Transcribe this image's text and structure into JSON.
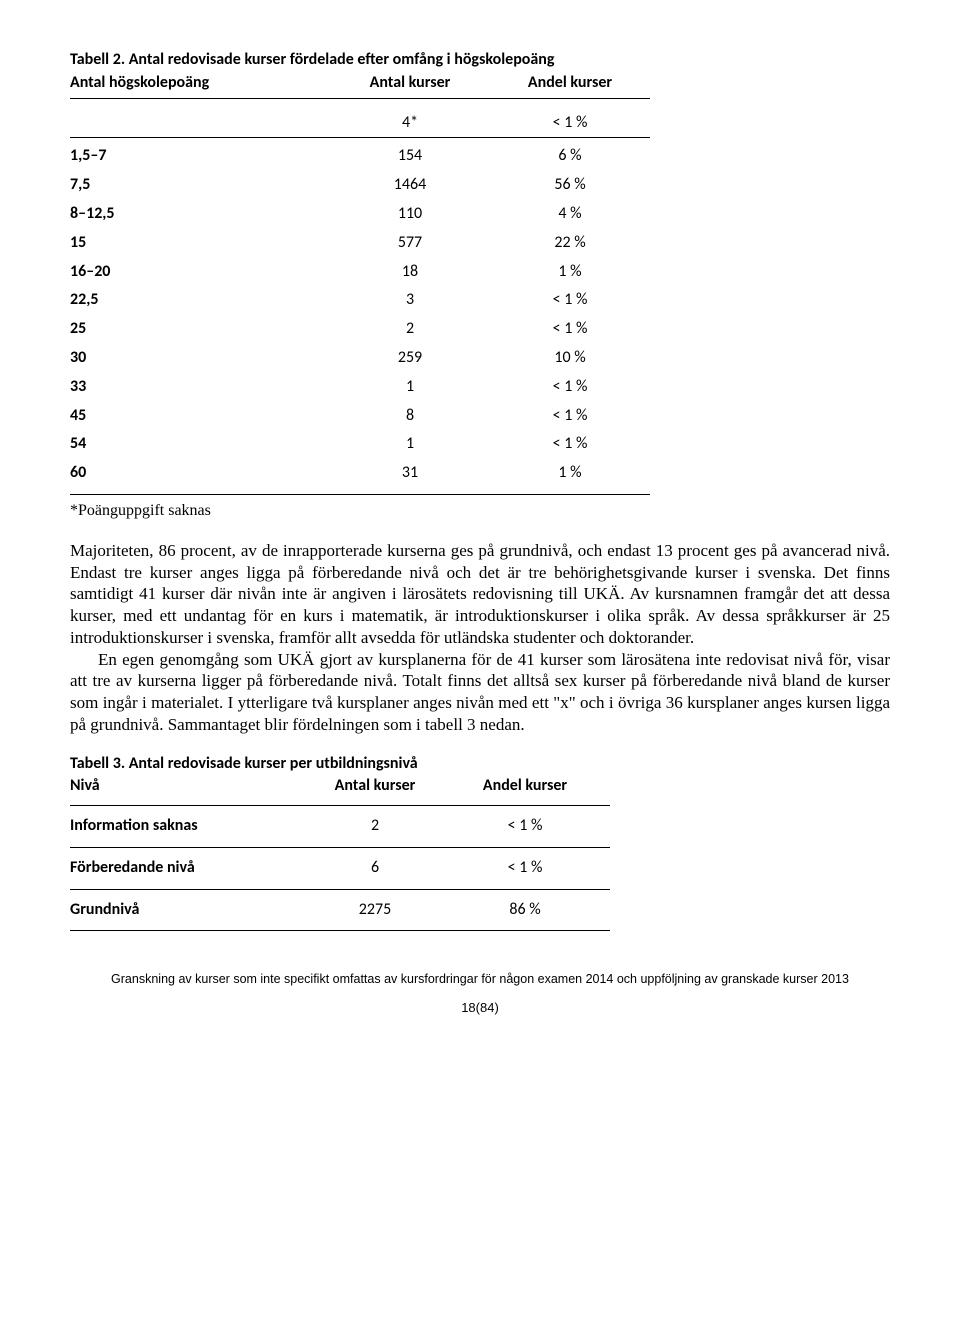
{
  "table1": {
    "title": "Tabell 2. Antal redovisade kurser fördelade efter omfång i högskolepoäng",
    "columns": [
      "Antal högskolepoäng",
      "Antal kurser",
      "Andel kurser"
    ],
    "first_row": {
      "c1": "",
      "c2": "4*",
      "c3": "< 1 %"
    },
    "rows": [
      {
        "c1": "1,5–7",
        "c2": "154",
        "c3": "6 %"
      },
      {
        "c1": "7,5",
        "c2": "1464",
        "c3": "56 %"
      },
      {
        "c1": "8–12,5",
        "c2": "110",
        "c3": "4 %"
      },
      {
        "c1": "15",
        "c2": "577",
        "c3": "22 %"
      },
      {
        "c1": "16–20",
        "c2": "18",
        "c3": "1 %"
      },
      {
        "c1": "22,5",
        "c2": "3",
        "c3": "< 1 %"
      },
      {
        "c1": "25",
        "c2": "2",
        "c3": "< 1 %"
      },
      {
        "c1": "30",
        "c2": "259",
        "c3": "10 %"
      },
      {
        "c1": "33",
        "c2": "1",
        "c3": "< 1 %"
      },
      {
        "c1": "45",
        "c2": "8",
        "c3": "< 1 %"
      },
      {
        "c1": "54",
        "c2": "1",
        "c3": "< 1 %"
      },
      {
        "c1": "60",
        "c2": "31",
        "c3": "1 %"
      }
    ],
    "footnote": "*Poänguppgift saknas"
  },
  "para1": "Majoriteten, 86 procent, av de inrapporterade kurserna ges på grundnivå, och endast 13 procent ges på avancerad nivå. Endast tre kurser anges ligga på förberedande nivå och det är tre behörighetsgivande kurser i svenska. Det finns samtidigt 41 kurser där nivån inte är angiven i lärosätets redovisning till UKÄ. Av kursnamnen framgår det att dessa kurser, med ett undantag för en kurs i matematik, är introduktionskurser i olika språk. Av dessa språkkurser är 25 introduktionskurser i svenska, framför allt avsedda för utländska studenter och doktorander.",
  "para2": "En egen genomgång som UKÄ gjort av kursplanerna för de 41 kurser som lärosätena inte redovisat nivå för, visar att tre av kurserna ligger på förberedande nivå. Totalt finns det alltså sex kurser på förberedande nivå bland de kurser som ingår i materialet. I ytterligare två kursplaner anges nivån med ett \"x\" och i övriga 36 kursplaner anges kursen ligga på grundnivå. Sammantaget blir fördelningen som i tabell 3 nedan.",
  "table3": {
    "title": "Tabell 3. Antal redovisade kurser per utbildningsnivå",
    "columns": [
      "Nivå",
      "Antal kurser",
      "Andel kurser"
    ],
    "rows": [
      {
        "c1": "Information saknas",
        "c2": "2",
        "c3": "< 1 %"
      },
      {
        "c1": "Förberedande nivå",
        "c2": "6",
        "c3": "< 1 %"
      },
      {
        "c1": "Grundnivå",
        "c2": "2275",
        "c3": "86 %"
      }
    ]
  },
  "footer": "Granskning av kurser som inte specifikt omfattas av kursfordringar för någon examen 2014 och uppföljning av granskade kurser 2013",
  "pagenum": "18(84)"
}
